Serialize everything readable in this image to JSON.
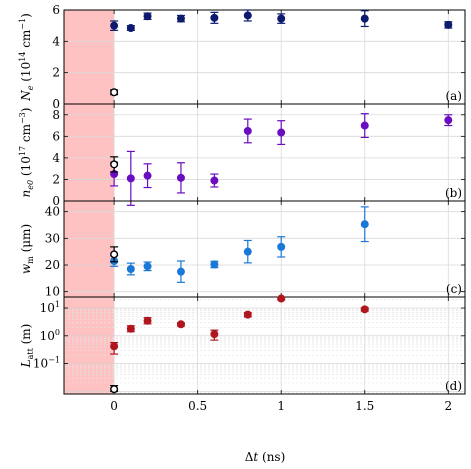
{
  "chart_data": {
    "type": "scatter",
    "xlabel": "Δt (ns)",
    "xlim": [
      -0.3,
      2.1
    ],
    "x_ticks": [
      0,
      0.5,
      1,
      1.5,
      2
    ],
    "x_tick_labels": [
      "0",
      "0.5",
      "1",
      "1.5",
      "2"
    ],
    "shaded_region": {
      "x": [
        -0.3,
        0
      ],
      "color": "#ffc2c2"
    },
    "panels": [
      {
        "label": "(a)",
        "ylabel": "N_e (10^14 cm^-1)",
        "ylabel_parts": {
          "sym": "N",
          "sub": "e",
          "pre": " (10",
          "exp1": "14",
          "mid": " cm",
          "exp2": "−1",
          "post": ")"
        },
        "ylim": [
          0,
          6
        ],
        "scale": "linear",
        "y_ticks": [
          0,
          2,
          4,
          6
        ],
        "y_tick_labels": [
          "0",
          "2",
          "4",
          "6"
        ],
        "color": "#0d1a6e",
        "series": [
          {
            "x": [
              0,
              0.1,
              0.2,
              0.4,
              0.6,
              0.8,
              1.0,
              1.5,
              2.0
            ],
            "y": [
              5.0,
              4.85,
              5.6,
              5.45,
              5.5,
              5.65,
              5.45,
              5.45,
              5.05
            ],
            "err": [
              0.3,
              0.15,
              0.2,
              0.2,
              0.35,
              0.35,
              0.3,
              0.5,
              0.2
            ]
          }
        ],
        "open_point": {
          "x": 0,
          "y": 0.75,
          "err": 0.15
        }
      },
      {
        "label": "(b)",
        "ylabel": "n_e0 (10^17 cm^-3)",
        "ylabel_parts": {
          "sym": "n",
          "sub": "e0",
          "pre": " (10",
          "exp1": "17",
          "mid": " cm",
          "exp2": "−3",
          "post": ")"
        },
        "ylim": [
          0,
          9
        ],
        "scale": "linear",
        "y_ticks": [
          0,
          2,
          4,
          6,
          8
        ],
        "y_tick_labels": [
          "0",
          "2",
          "4",
          "6",
          "8"
        ],
        "color": "#6a0dbf",
        "series": [
          {
            "x": [
              0,
              0.1,
              0.2,
              0.4,
              0.6,
              0.8,
              1.0,
              1.5,
              2.0
            ],
            "y": [
              2.5,
              2.1,
              2.35,
              2.15,
              1.9,
              6.5,
              6.35,
              7.0,
              7.5
            ],
            "err": [
              1.1,
              2.5,
              1.1,
              1.4,
              0.6,
              1.1,
              1.1,
              1.1,
              0.5
            ]
          }
        ],
        "open_point": {
          "x": 0,
          "y": 3.4,
          "err": 0.7
        }
      },
      {
        "label": "(c)",
        "ylabel": "w_m (μm)",
        "ylabel_parts": {
          "sym": "w",
          "sub": "m",
          "pre": " (μm)",
          "exp1": "",
          "mid": "",
          "exp2": "",
          "post": ""
        },
        "ylim": [
          8,
          44
        ],
        "scale": "linear",
        "y_ticks": [
          10,
          20,
          30,
          40
        ],
        "y_tick_labels": [
          "10",
          "20",
          "30",
          "40"
        ],
        "color": "#1a78d6",
        "series": [
          {
            "x": [
              0,
              0.1,
              0.2,
              0.4,
              0.6,
              0.8,
              1.0,
              1.5
            ],
            "y": [
              21.5,
              18.5,
              19.5,
              17.5,
              20.2,
              25.0,
              26.8,
              35.3
            ],
            "err": [
              2.0,
              2.2,
              1.6,
              4.0,
              1.2,
              4.2,
              3.8,
              6.5
            ]
          }
        ],
        "open_point": {
          "x": 0,
          "y": 24.0,
          "err": 2.8
        }
      },
      {
        "label": "(d)",
        "ylabel": "L_att (m)",
        "ylabel_parts": {
          "sym": "L",
          "sub": "att",
          "pre": " (m)",
          "exp1": "",
          "mid": "",
          "exp2": "",
          "post": ""
        },
        "ylim": [
          0.008,
          25
        ],
        "scale": "log",
        "y_ticks": [
          0.1,
          1,
          10
        ],
        "y_tick_labels_parts": [
          [
            "10",
            "−1"
          ],
          [
            "10",
            "0"
          ],
          [
            "10",
            "1"
          ]
        ],
        "color": "#b0161e",
        "series": [
          {
            "x": [
              0,
              0.1,
              0.2,
              0.4,
              0.6,
              0.8,
              1.0,
              1.5
            ],
            "y": [
              0.42,
              1.8,
              3.5,
              2.6,
              1.15,
              5.8,
              22.0,
              9.0
            ],
            "err_lo": [
              0.2,
              0.4,
              0.8,
              0.35,
              0.45,
              1.0,
              2.5,
              1.2
            ],
            "err_hi": [
              0.15,
              0.5,
              1.0,
              0.3,
              0.45,
              1.0,
              2.5,
              1.2
            ]
          }
        ],
        "open_point": {
          "x": 0,
          "y": 0.012,
          "err_lo": 0.002,
          "err_hi": 0.004
        }
      }
    ]
  }
}
